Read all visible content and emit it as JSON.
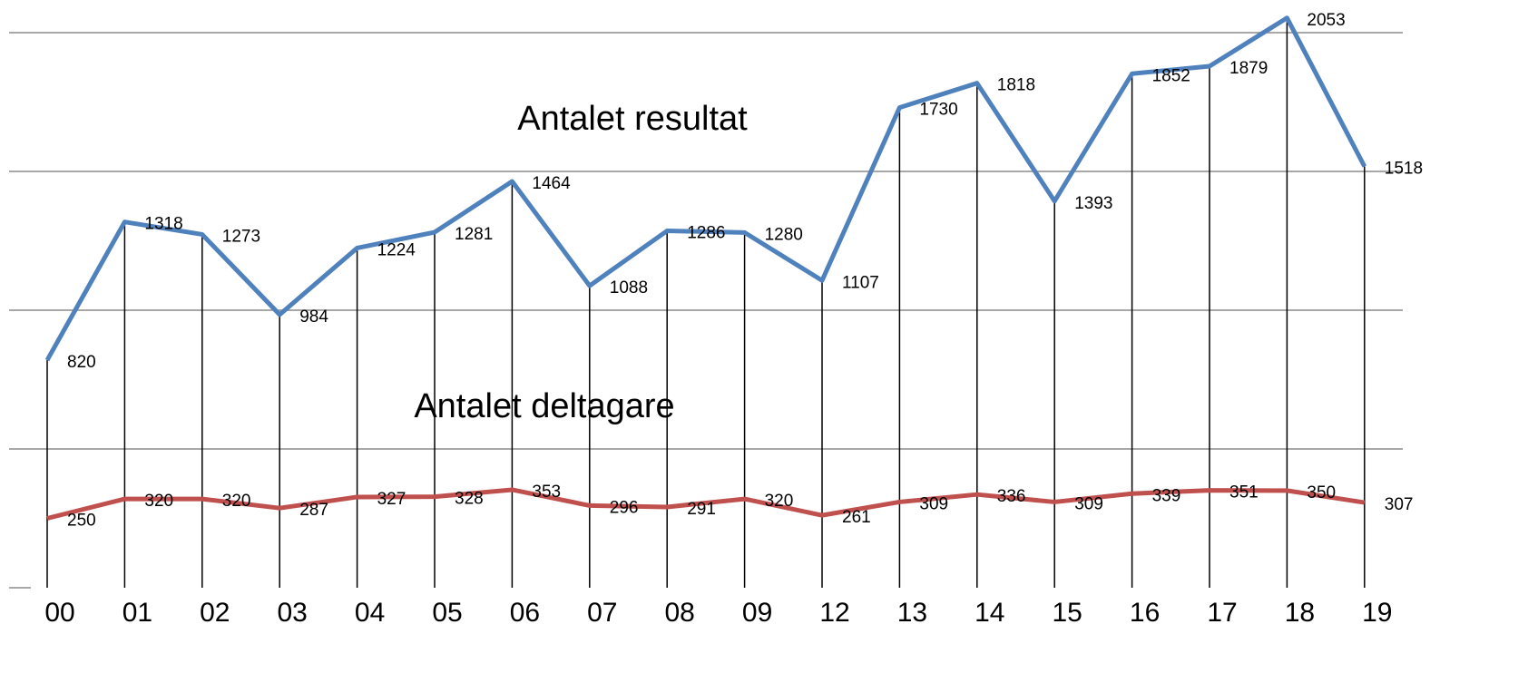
{
  "chart_data": {
    "type": "line",
    "categories": [
      "00",
      "01",
      "02",
      "03",
      "04",
      "05",
      "06",
      "07",
      "08",
      "09",
      "12",
      "13",
      "14",
      "15",
      "16",
      "17",
      "18",
      "19"
    ],
    "series": [
      {
        "name": "Antalet resultat",
        "color": "#4f81bd",
        "values": [
          820,
          1318,
          1273,
          984,
          1224,
          1281,
          1464,
          1088,
          1286,
          1280,
          1107,
          1730,
          1818,
          1393,
          1852,
          1879,
          2053,
          1518
        ]
      },
      {
        "name": "Antalet deltagare",
        "color": "#c0504d",
        "values": [
          250,
          320,
          320,
          287,
          327,
          328,
          353,
          296,
          291,
          320,
          261,
          309,
          336,
          309,
          339,
          351,
          350,
          307
        ]
      }
    ],
    "ylim": [
      0,
      2100
    ],
    "yticks": [
      0,
      500,
      1000,
      1500,
      2000
    ],
    "grid": true,
    "drop_lines": true
  }
}
